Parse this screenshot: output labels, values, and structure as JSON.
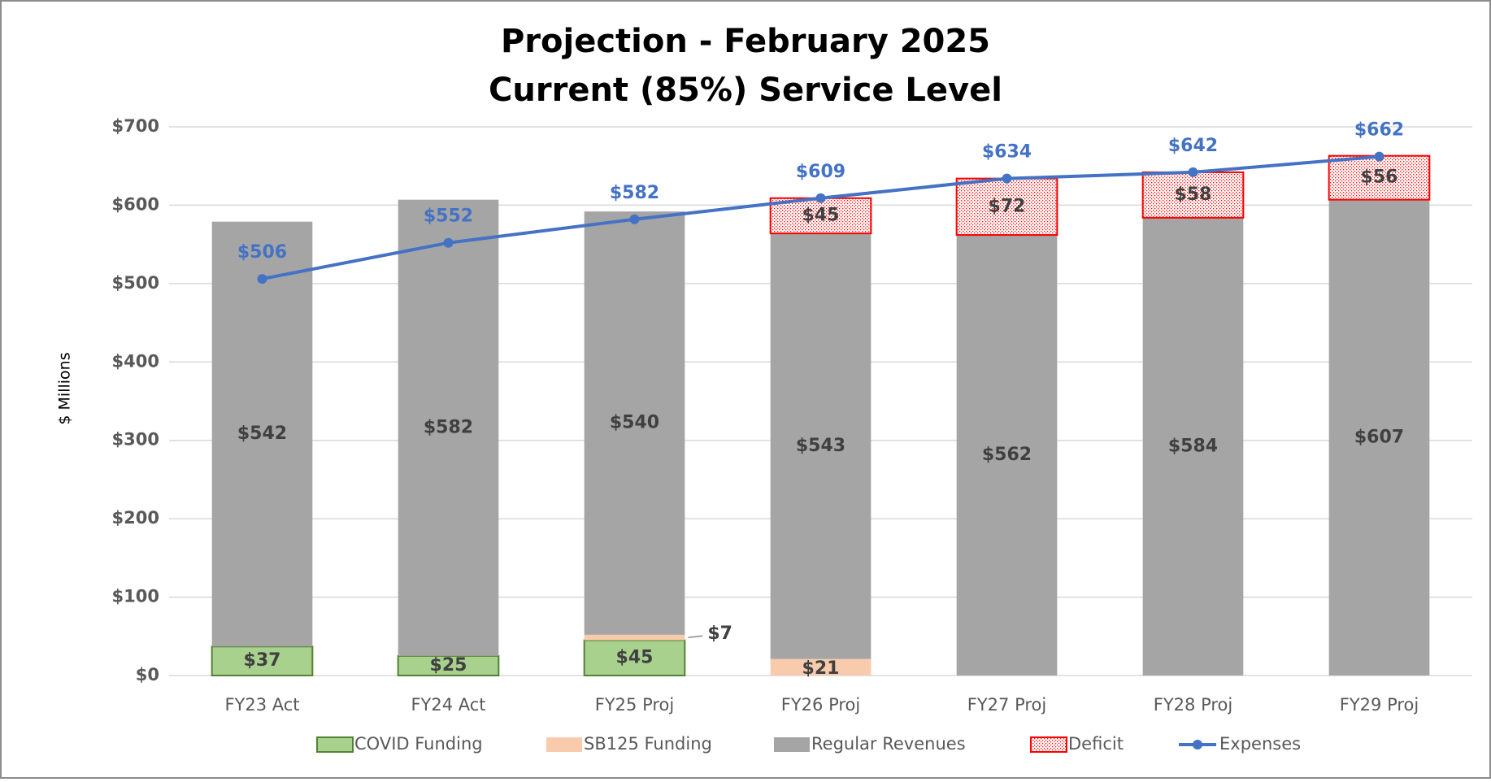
{
  "chart_data": {
    "type": "stacked-bar-line",
    "title": [
      "Projection - February 2025",
      "Current (85%) Service Level"
    ],
    "y_label": "$ Millions",
    "categories": [
      "FY23 Act",
      "FY24 Act",
      "FY25 Proj",
      "FY26 Proj",
      "FY27 Proj",
      "FY28 Proj",
      "FY29 Proj"
    ],
    "series": [
      {
        "name": "COVID Funding",
        "type": "bar",
        "color": "#a9d18e",
        "border": "#548235",
        "values": [
          37,
          25,
          45,
          null,
          null,
          null,
          null
        ],
        "value_labels": [
          "$37",
          "$25",
          "$45",
          null,
          null,
          null,
          null
        ]
      },
      {
        "name": "SB125 Funding",
        "type": "bar",
        "color": "#f8cbad",
        "values": [
          null,
          null,
          7,
          21,
          null,
          null,
          null
        ],
        "value_labels": [
          null,
          null,
          "$7",
          "$21",
          null,
          null,
          null
        ]
      },
      {
        "name": "Regular Revenues",
        "type": "bar",
        "color": "#a5a5a5",
        "values": [
          542,
          582,
          540,
          543,
          562,
          584,
          607
        ],
        "value_labels": [
          "$542",
          "$582",
          "$540",
          "$543",
          "$562",
          "$584",
          "$607"
        ]
      },
      {
        "name": "Deficit",
        "type": "bar",
        "color": "#ff0000",
        "pattern": "dotted",
        "values": [
          null,
          null,
          null,
          45,
          72,
          58,
          56
        ],
        "value_labels": [
          null,
          null,
          null,
          "$45",
          "$72",
          "$58",
          "$56"
        ]
      },
      {
        "name": "Expenses",
        "type": "line",
        "color": "#4472c4",
        "values": [
          506,
          552,
          582,
          609,
          634,
          642,
          662
        ],
        "value_labels": [
          "$506",
          "$552",
          "$582",
          "$609",
          "$634",
          "$642",
          "$662"
        ]
      }
    ],
    "ylim": [
      0,
      700
    ],
    "yticks": [
      {
        "value": 0,
        "label": "$0"
      },
      {
        "value": 100,
        "label": "$100"
      },
      {
        "value": 200,
        "label": "$200"
      },
      {
        "value": 300,
        "label": "$300"
      },
      {
        "value": 400,
        "label": "$400"
      },
      {
        "value": 500,
        "label": "$500"
      },
      {
        "value": 600,
        "label": "$600"
      },
      {
        "value": 700,
        "label": "$700"
      }
    ],
    "grid": true,
    "legend": "bottom"
  }
}
